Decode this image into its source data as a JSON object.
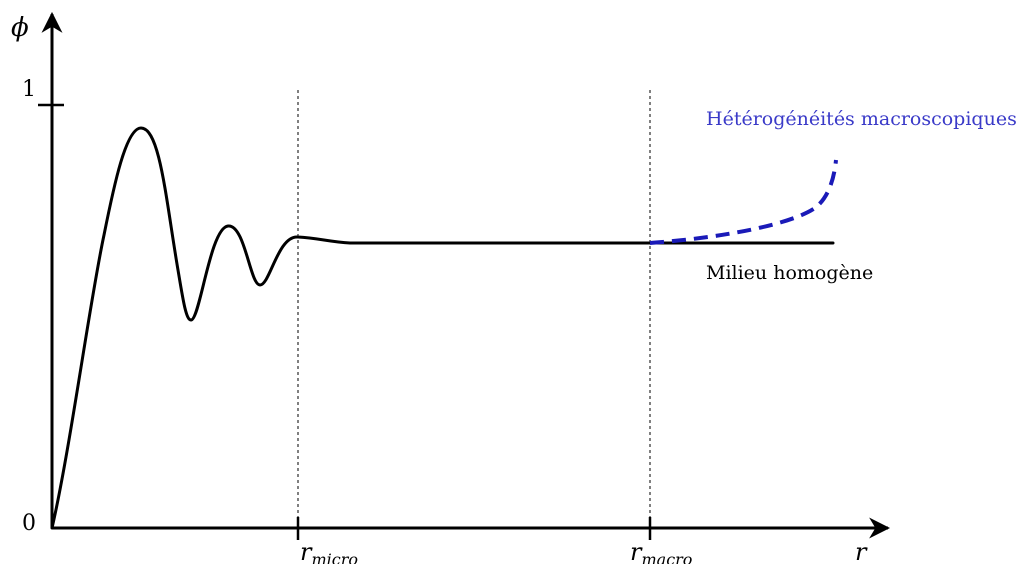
{
  "axes": {
    "y_symbol": "ϕ",
    "x_symbol": "r",
    "y_tick_one": "1",
    "y_tick_zero": "0"
  },
  "markers": {
    "micro": {
      "base": "r",
      "sub": "micro"
    },
    "macro": {
      "base": "r",
      "sub": "macro"
    }
  },
  "labels": {
    "homogeneous": "Milieu homogène",
    "heterogeneities": "Hétérogénéités macroscopiques"
  },
  "colors": {
    "curve": "#000000",
    "heterogeneity": "#1a1ab8",
    "heterogeneity_label": "#3a3ac8"
  }
}
